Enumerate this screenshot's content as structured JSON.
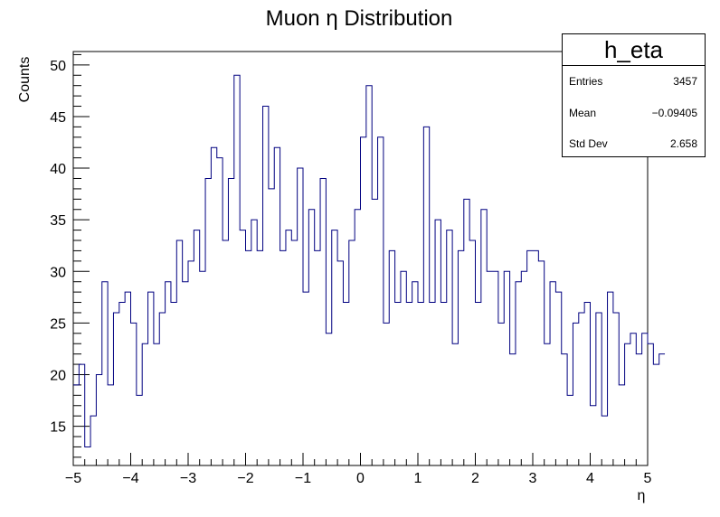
{
  "chart_data": {
    "type": "histogram",
    "title": "Muon   η Distribution",
    "xlabel": "η",
    "ylabel": "Counts",
    "xlim": [
      -5,
      5
    ],
    "ylim": [
      11.2,
      51.3
    ],
    "bin_width": 0.1,
    "x_ticks": [
      "−5",
      "−4",
      "−3",
      "−2",
      "−1",
      "0",
      "1",
      "2",
      "3",
      "4",
      "5"
    ],
    "y_ticks": [
      "15",
      "20",
      "25",
      "30",
      "35",
      "40",
      "45",
      "50"
    ],
    "x_tick_values": [
      -5,
      -4,
      -3,
      -2,
      -1,
      0,
      1,
      2,
      3,
      4,
      5
    ],
    "y_tick_values": [
      15,
      20,
      25,
      30,
      35,
      40,
      45,
      50
    ],
    "line_color": "#000080",
    "values": [
      19,
      21,
      13,
      16,
      20,
      29,
      19,
      26,
      27,
      28,
      25,
      18,
      23,
      28,
      23,
      26,
      29,
      27,
      33,
      29,
      31,
      34,
      30,
      39,
      42,
      41,
      33,
      39,
      49,
      34,
      32,
      35,
      32,
      46,
      38,
      42,
      32,
      34,
      33,
      40,
      28,
      36,
      32,
      39,
      24,
      34,
      31,
      27,
      33,
      36,
      43,
      48,
      37,
      43,
      25,
      32,
      27,
      30,
      27,
      29,
      27,
      44,
      27,
      35,
      27,
      34,
      23,
      32,
      37,
      33,
      27,
      36,
      30,
      30,
      25,
      30,
      22,
      29,
      30,
      32,
      32,
      31,
      23,
      29,
      28,
      22,
      18,
      25,
      26,
      27,
      17,
      26,
      16,
      28,
      26,
      19,
      23,
      24,
      22,
      24,
      23,
      21,
      22
    ]
  },
  "stats": {
    "name": "h_eta",
    "rows": [
      {
        "label": "Entries",
        "value": "3457"
      },
      {
        "label": "Mean",
        "value": "−0.09405"
      },
      {
        "label": "Std Dev",
        "value": "2.658"
      }
    ]
  }
}
